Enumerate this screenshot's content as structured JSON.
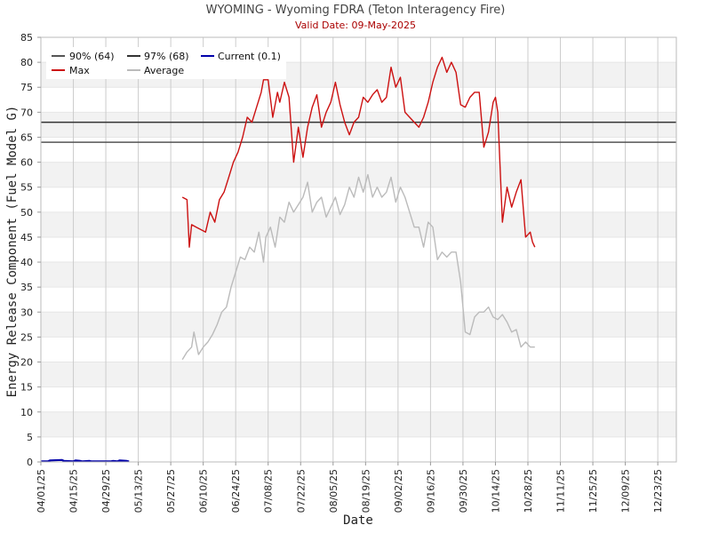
{
  "chart_data": {
    "type": "line",
    "title": "WYOMING - Wyoming FDRA (Teton Interagency Fire)",
    "subtitle": "Valid Date: 09-May-2025",
    "xlabel": "Date",
    "ylabel": "Energy Release Component (Fuel Model G)",
    "ylim": [
      0,
      85
    ],
    "yticks": [
      0,
      5,
      10,
      15,
      20,
      25,
      30,
      35,
      40,
      45,
      50,
      55,
      60,
      65,
      70,
      75,
      80,
      85
    ],
    "xlim": [
      "2025-04-01",
      "2025-12-31"
    ],
    "xticks": [
      "04/01/25",
      "04/15/25",
      "04/29/25",
      "05/13/25",
      "05/27/25",
      "06/10/25",
      "06/24/25",
      "07/08/25",
      "07/22/25",
      "08/05/25",
      "08/19/25",
      "09/02/25",
      "09/16/25",
      "09/30/25",
      "10/14/25",
      "10/28/25",
      "11/11/25",
      "11/25/25",
      "12/09/25",
      "12/23/25"
    ],
    "grid": true,
    "banded_background": true,
    "legend_position": "top-left",
    "legend": [
      "90% (64)",
      "97% (68)",
      "Current (0.1)",
      "Max",
      "Average"
    ],
    "thresholds": [
      {
        "name": "90% (64)",
        "value": 64,
        "color": "#555555"
      },
      {
        "name": "97% (68)",
        "value": 68,
        "color": "#333333"
      }
    ],
    "series": [
      {
        "name": "Max",
        "color": "#cc1111",
        "x": [
          "2025-06-01",
          "2025-06-03",
          "2025-06-04",
          "2025-06-05",
          "2025-06-07",
          "2025-06-09",
          "2025-06-11",
          "2025-06-13",
          "2025-06-15",
          "2025-06-17",
          "2025-06-19",
          "2025-06-21",
          "2025-06-23",
          "2025-06-25",
          "2025-06-27",
          "2025-06-29",
          "2025-07-01",
          "2025-07-03",
          "2025-07-05",
          "2025-07-06",
          "2025-07-08",
          "2025-07-10",
          "2025-07-12",
          "2025-07-13",
          "2025-07-15",
          "2025-07-17",
          "2025-07-19",
          "2025-07-21",
          "2025-07-23",
          "2025-07-25",
          "2025-07-27",
          "2025-07-29",
          "2025-07-31",
          "2025-08-02",
          "2025-08-04",
          "2025-08-06",
          "2025-08-08",
          "2025-08-10",
          "2025-08-12",
          "2025-08-14",
          "2025-08-16",
          "2025-08-18",
          "2025-08-20",
          "2025-08-22",
          "2025-08-24",
          "2025-08-26",
          "2025-08-28",
          "2025-08-30",
          "2025-09-01",
          "2025-09-03",
          "2025-09-05",
          "2025-09-07",
          "2025-09-09",
          "2025-09-11",
          "2025-09-13",
          "2025-09-15",
          "2025-09-17",
          "2025-09-19",
          "2025-09-21",
          "2025-09-23",
          "2025-09-25",
          "2025-09-27",
          "2025-09-29",
          "2025-10-01",
          "2025-10-03",
          "2025-10-05",
          "2025-10-07",
          "2025-10-09",
          "2025-10-11",
          "2025-10-13",
          "2025-10-14",
          "2025-10-15",
          "2025-10-17",
          "2025-10-19",
          "2025-10-21",
          "2025-10-23",
          "2025-10-25",
          "2025-10-27",
          "2025-10-29",
          "2025-10-30",
          "2025-10-31"
        ],
        "values": [
          53,
          52.5,
          43,
          47.5,
          47,
          46.5,
          46,
          50,
          48,
          52.5,
          54,
          57,
          60,
          62,
          65,
          69,
          68,
          71,
          74,
          76.5,
          76.5,
          69,
          74,
          72,
          76,
          73,
          60,
          67,
          61,
          67,
          71,
          73.5,
          67,
          70,
          72,
          76,
          71.5,
          68,
          65.5,
          68,
          69,
          73,
          72,
          73.5,
          74.5,
          72,
          73,
          79,
          75,
          77,
          70,
          69,
          68,
          67,
          69,
          72,
          76,
          79,
          81,
          78,
          80,
          78,
          71.5,
          71,
          73,
          74,
          74,
          63,
          66,
          72,
          73,
          70,
          48,
          55,
          51,
          54,
          56.5,
          45,
          46,
          44,
          43
        ]
      },
      {
        "name": "Average",
        "color": "#bbbbbb",
        "x": [
          "2025-06-01",
          "2025-06-03",
          "2025-06-05",
          "2025-06-06",
          "2025-06-08",
          "2025-06-10",
          "2025-06-12",
          "2025-06-14",
          "2025-06-16",
          "2025-06-18",
          "2025-06-20",
          "2025-06-22",
          "2025-06-24",
          "2025-06-26",
          "2025-06-28",
          "2025-06-30",
          "2025-07-02",
          "2025-07-04",
          "2025-07-06",
          "2025-07-07",
          "2025-07-09",
          "2025-07-11",
          "2025-07-13",
          "2025-07-15",
          "2025-07-17",
          "2025-07-19",
          "2025-07-21",
          "2025-07-23",
          "2025-07-25",
          "2025-07-27",
          "2025-07-29",
          "2025-07-31",
          "2025-08-02",
          "2025-08-04",
          "2025-08-06",
          "2025-08-08",
          "2025-08-10",
          "2025-08-12",
          "2025-08-14",
          "2025-08-16",
          "2025-08-18",
          "2025-08-20",
          "2025-08-22",
          "2025-08-24",
          "2025-08-26",
          "2025-08-28",
          "2025-08-30",
          "2025-09-01",
          "2025-09-03",
          "2025-09-05",
          "2025-09-07",
          "2025-09-09",
          "2025-09-11",
          "2025-09-13",
          "2025-09-15",
          "2025-09-17",
          "2025-09-19",
          "2025-09-21",
          "2025-09-23",
          "2025-09-25",
          "2025-09-27",
          "2025-09-29",
          "2025-10-01",
          "2025-10-03",
          "2025-10-05",
          "2025-10-07",
          "2025-10-09",
          "2025-10-11",
          "2025-10-13",
          "2025-10-15",
          "2025-10-17",
          "2025-10-19",
          "2025-10-21",
          "2025-10-23",
          "2025-10-25",
          "2025-10-27",
          "2025-10-29",
          "2025-10-31"
        ],
        "values": [
          20.5,
          22,
          23,
          26,
          21.5,
          23,
          24,
          25.5,
          27.5,
          30,
          31,
          35,
          38,
          41,
          40.5,
          43,
          42,
          46,
          40,
          45,
          47,
          43,
          49,
          48,
          52,
          50,
          51.5,
          53,
          56,
          50,
          52,
          53,
          49,
          51,
          53,
          49.5,
          51.5,
          55,
          53,
          57,
          54,
          57.5,
          53,
          55,
          53,
          54,
          57,
          52,
          55,
          53,
          50,
          47,
          47,
          43,
          48,
          47,
          40.5,
          42,
          41,
          42,
          42,
          36,
          26,
          25.5,
          29,
          30,
          30,
          31,
          29,
          28.5,
          29.5,
          28,
          26,
          26.5,
          23,
          24,
          23,
          23
        ]
      },
      {
        "name": "Current (0.1)",
        "color": "#0000aa",
        "x": [
          "2025-04-01",
          "2025-04-04",
          "2025-04-05",
          "2025-04-10",
          "2025-04-11",
          "2025-04-15",
          "2025-04-16",
          "2025-04-18",
          "2025-04-19",
          "2025-04-22",
          "2025-04-23",
          "2025-05-01",
          "2025-05-02",
          "2025-05-04",
          "2025-05-05",
          "2025-05-08",
          "2025-05-09"
        ],
        "values": [
          0.1,
          0.1,
          0.3,
          0.4,
          0.2,
          0.1,
          0.3,
          0.2,
          0.1,
          0.2,
          0.1,
          0.1,
          0.2,
          0.1,
          0.3,
          0.2,
          0.1
        ]
      }
    ]
  }
}
